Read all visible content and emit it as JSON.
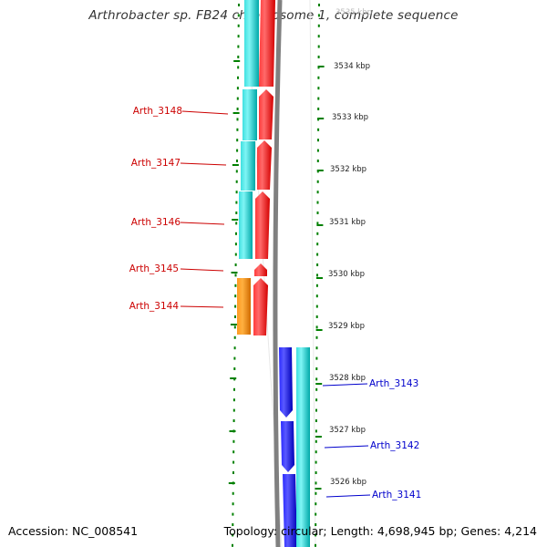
{
  "title": "Arthrobacter sp. FB24 chromosome 1, complete sequence",
  "accession": "Accession: NC_008541",
  "topology": "Topology: circular; Length: 4,698,945 bp; Genes: 4,214",
  "colors": {
    "cds_forward": "#ff0000",
    "cds_reverse": "#0000ee",
    "gene_forward": "#00c8c8",
    "gene_reverse": "#00c8c8",
    "gene_orange": "#f08000",
    "backbone": "#808080",
    "tick": "#008000",
    "label_forward": "#cc0000",
    "label_reverse": "#0000cc"
  },
  "scale_labels": [
    {
      "text": "3535 kbp",
      "kbp": 3535
    },
    {
      "text": "3534 kbp",
      "kbp": 3534
    },
    {
      "text": "3533 kbp",
      "kbp": 3533
    },
    {
      "text": "3532 kbp",
      "kbp": 3532
    },
    {
      "text": "3531 kbp",
      "kbp": 3531
    },
    {
      "text": "3530 kbp",
      "kbp": 3530
    },
    {
      "text": "3529 kbp",
      "kbp": 3529
    },
    {
      "text": "3528 kbp",
      "kbp": 3528
    },
    {
      "text": "3527 kbp",
      "kbp": 3527
    },
    {
      "text": "3526 kbp",
      "kbp": 3526
    }
  ],
  "gene_labels_forward": [
    "Arth_3148",
    "Arth_3147",
    "Arth_3146",
    "Arth_3145",
    "Arth_3144"
  ],
  "gene_labels_reverse": [
    "Arth_3143",
    "Arth_3142",
    "Arth_3141"
  ]
}
